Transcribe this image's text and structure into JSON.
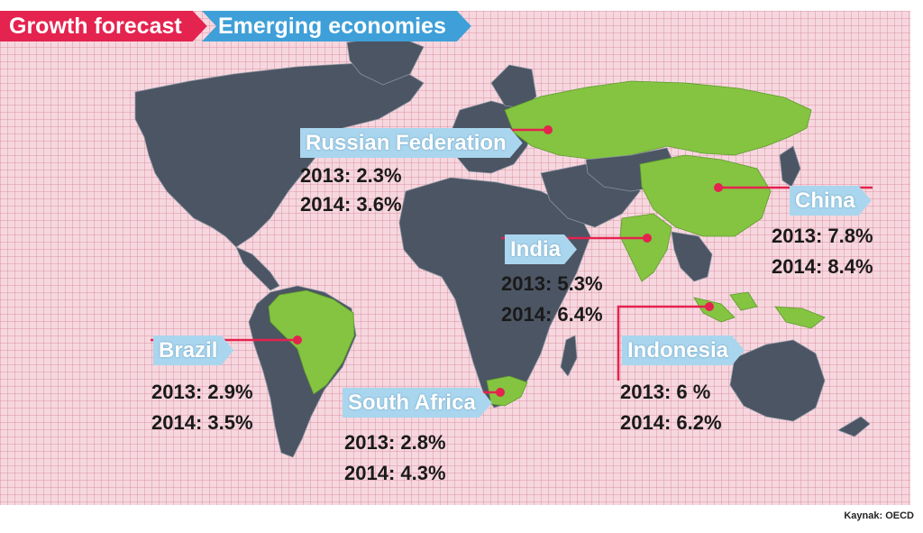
{
  "header": {
    "growth_forecast": "Growth forecast",
    "emerging_economies": "Emerging economies"
  },
  "countries": [
    {
      "name": "Russian Federation",
      "y2013": "2013: 2.3%",
      "y2014": "2014: 3.6%"
    },
    {
      "name": "China",
      "y2013": "2013: 7.8%",
      "y2014": "2014: 8.4%"
    },
    {
      "name": "India",
      "y2013": "2013: 5.3%",
      "y2014": "2014: 6.4%"
    },
    {
      "name": "Indonesia",
      "y2013": "2013: 6 %",
      "y2014": "2014: 6.2%"
    },
    {
      "name": "Brazil",
      "y2013": "2013: 2.9%",
      "y2014": "2014: 3.5%"
    },
    {
      "name": "South Africa",
      "y2013": "2013: 2.8%",
      "y2014": "2014: 4.3%"
    }
  ],
  "source": "Kaynak: OECD",
  "colors": {
    "highlight": "#84c441",
    "land": "#4c5563",
    "background": "#f6d7df",
    "accent_red": "#e4234f",
    "accent_blue": "#3f9fd8"
  }
}
